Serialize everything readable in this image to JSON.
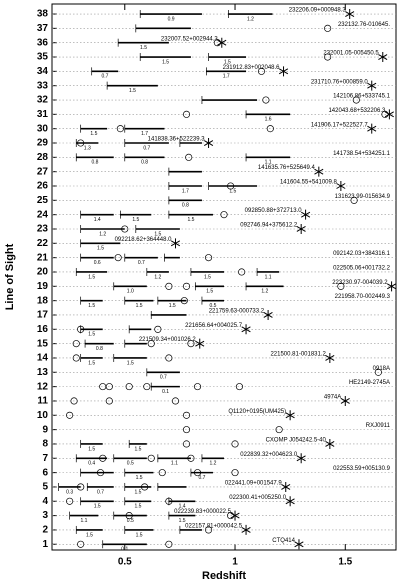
{
  "chart_data": {
    "type": "sightlines",
    "xlabel": "Redshift",
    "ylabel": "Line of Sight",
    "xlim": [
      0.17,
      1.73
    ],
    "xticks": [
      0.5,
      1,
      1.5
    ],
    "ylim": [
      0.6,
      38.7
    ],
    "yticks": [
      1,
      2,
      3,
      4,
      5,
      6,
      7,
      8,
      9,
      10,
      11,
      12,
      13,
      14,
      15,
      16,
      17,
      18,
      19,
      20,
      21,
      22,
      23,
      24,
      25,
      26,
      27,
      28,
      29,
      30,
      31,
      32,
      33,
      34,
      35,
      36,
      37,
      38
    ],
    "grid": true,
    "color": "#000000",
    "lines": [
      {
        "label": "CTQ414",
        "quasar_z": 1.29,
        "absorbers": [
          0.3,
          0.7
        ],
        "paths": [
          {
            "z": [
              0.4,
              0.6
            ],
            "label": "0.1"
          }
        ]
      },
      {
        "label": "022157.81+000042.5",
        "quasar_z": 1.05,
        "absorbers": [
          0.88
        ],
        "paths": [
          {
            "z": [
              0.28,
              0.4
            ],
            "label": "1.5"
          },
          {
            "z": [
              0.5,
              0.63
            ],
            "label": "1.5"
          },
          {
            "z": [
              0.75,
              0.85
            ]
          }
        ]
      },
      {
        "label": "022239.83+000022.5",
        "quasar_z": 1.0,
        "absorbers": [
          0.52,
          0.98
        ],
        "paths": [
          {
            "z": [
              0.25,
              0.38
            ],
            "label": "1.1"
          },
          {
            "z": [
              0.45,
              0.6
            ],
            "label": "0.5"
          },
          {
            "z": [
              0.7,
              0.82
            ],
            "label": "1.5"
          }
        ]
      },
      {
        "label": "022300.41+005250.0",
        "quasar_z": 1.25,
        "absorbers": [
          0.25,
          0.7
        ],
        "paths": [
          {
            "z": [
              0.3,
              0.45
            ],
            "label": "1.5"
          },
          {
            "z": [
              0.5,
              0.62
            ],
            "label": "1.5"
          },
          {
            "z": [
              0.7,
              0.82
            ],
            "label": "1.4"
          }
        ]
      },
      {
        "label": "022441.09+001547.9",
        "quasar_z": 1.23,
        "absorbers": [
          0.3,
          0.59
        ],
        "paths": [
          {
            "z": [
              0.2,
              0.3
            ],
            "label": "0.3"
          },
          {
            "z": [
              0.33,
              0.45
            ],
            "label": "0.7"
          },
          {
            "z": [
              0.5,
              0.62
            ],
            "label": "1.5"
          },
          {
            "z": [
              0.65,
              0.78
            ]
          }
        ]
      },
      {
        "label": "022553.59+005130.9",
        "absorbers": [
          0.39,
          0.67,
          0.83,
          1.0
        ],
        "paths": [
          {
            "z": [
              0.3,
              0.45
            ]
          },
          {
            "z": [
              0.5,
              0.63
            ],
            "label": "1.5"
          },
          {
            "z": [
              0.8,
              0.9
            ],
            "label": "0.7"
          }
        ]
      },
      {
        "label": "022839.32+004623.0",
        "quasar_z": 1.3,
        "absorbers": [
          0.4,
          0.62,
          0.8
        ],
        "paths": [
          {
            "z": [
              0.28,
              0.42
            ],
            "label": "0.4"
          },
          {
            "z": [
              0.45,
              0.6
            ],
            "label": "0.5"
          },
          {
            "z": [
              0.65,
              0.8
            ],
            "label": "1.1"
          },
          {
            "z": [
              0.85,
              0.95
            ],
            "label": "1.2"
          }
        ]
      },
      {
        "label": "CXOMP J054242.5-40",
        "quasar_z": 1.43,
        "absorbers": [
          0.78,
          1.0
        ],
        "paths": [
          {
            "z": [
              0.3,
              0.4
            ],
            "label": "1.5"
          },
          {
            "z": [
              0.52,
              0.6
            ],
            "label": "1.5"
          }
        ]
      },
      {
        "label": "RXJ0911",
        "absorbers": [
          0.78,
          1.2
        ],
        "paths": []
      },
      {
        "label": "Q1120+0195(UM425)",
        "quasar_z": 1.25,
        "absorbers": [
          0.25,
          0.78
        ],
        "paths": []
      },
      {
        "label": "4974A",
        "quasar_z": 1.5,
        "absorbers": [
          0.27,
          0.43,
          0.73
        ],
        "paths": []
      },
      {
        "label": "HE2149-2745A",
        "absorbers": [
          0.4,
          0.43,
          0.52,
          0.6,
          0.83,
          1.02
        ],
        "paths": [
          {
            "z": [
              0.62,
              0.75
            ],
            "label": "0.1"
          }
        ]
      },
      {
        "label": "0918A",
        "absorbers": [
          1.65
        ],
        "paths": [
          {
            "z": [
              0.6,
              0.75
            ],
            "label": "0.7"
          }
        ]
      },
      {
        "label": "221500.81-001831.2",
        "quasar_z": 1.43,
        "absorbers": [
          0.28,
          0.7
        ],
        "paths": [
          {
            "z": [
              0.3,
              0.4
            ],
            "label": "1.5"
          },
          {
            "z": [
              0.45,
              0.6
            ],
            "label": "1.5"
          }
        ]
      },
      {
        "label": "221509.34+001026.2",
        "quasar_z": 0.84,
        "absorbers": [
          0.28,
          0.62,
          0.8
        ],
        "paths": [
          {
            "z": [
              0.32,
              0.45
            ],
            "label": "0.8"
          },
          {
            "z": [
              0.5,
              0.6
            ]
          }
        ]
      },
      {
        "label": "221656.64+004025.7",
        "quasar_z": 1.05,
        "absorbers": [
          0.3,
          0.65
        ],
        "paths": [
          {
            "z": [
              0.3,
              0.4
            ],
            "label": "1.5"
          },
          {
            "z": [
              0.52,
              0.62
            ]
          }
        ]
      },
      {
        "label": "221759.63-000733.2",
        "quasar_z": 1.15,
        "absorbers": [],
        "paths": [
          {
            "z": [
              0.62,
              0.78
            ]
          }
        ]
      },
      {
        "label": "221958.70-002449.3",
        "absorbers": [
          0.77
        ],
        "paths": [
          {
            "z": [
              0.3,
              0.4
            ],
            "label": "1.5"
          },
          {
            "z": [
              0.5,
              0.63
            ],
            "label": "1.5"
          },
          {
            "z": [
              0.65,
              0.78
            ],
            "label": "1.5"
          },
          {
            "z": [
              0.85,
              0.95
            ],
            "label": "0.5"
          }
        ]
      },
      {
        "label": "223230.97-004039.2",
        "quasar_z": 1.71,
        "absorbers": [
          0.7,
          0.78,
          1.48
        ],
        "paths": [
          {
            "z": [
              0.45,
              0.6
            ],
            "label": "1.0"
          },
          {
            "z": [
              0.82,
              0.95
            ],
            "label": "1.5"
          },
          {
            "z": [
              1.05,
              1.22
            ],
            "label": "1.2"
          }
        ]
      },
      {
        "label": "022505.06+001732.2",
        "absorbers": [
          1.03
        ],
        "paths": [
          {
            "z": [
              0.28,
              0.42
            ],
            "label": "1.5"
          },
          {
            "z": [
              0.6,
              0.7
            ],
            "label": "1.2"
          },
          {
            "z": [
              0.8,
              0.95
            ],
            "label": "1.5"
          },
          {
            "z": [
              1.1,
              1.2
            ],
            "label": "1.1"
          }
        ]
      },
      {
        "label": "092142.03+384316.1",
        "absorbers": [
          0.47,
          0.88
        ],
        "paths": [
          {
            "z": [
              0.3,
              0.45
            ],
            "label": "0.6"
          },
          {
            "z": [
              0.5,
              0.65
            ],
            "label": "0.7"
          },
          {
            "z": [
              0.68,
              0.75
            ]
          }
        ]
      },
      {
        "label": "092218.62+364448.0",
        "quasar_z": 0.73,
        "absorbers": [],
        "paths": [
          {
            "z": [
              0.3,
              0.48
            ],
            "label": "1.5"
          }
        ]
      },
      {
        "label": "092746.94+375612.2",
        "quasar_z": 1.3,
        "absorbers": [
          0.5
        ],
        "paths": [
          {
            "z": [
              0.3,
              0.5
            ],
            "label": "1.2"
          },
          {
            "z": [
              0.55,
              0.75
            ],
            "label": "1.5"
          }
        ]
      },
      {
        "label": "092850.88+372713.0",
        "quasar_z": 1.32,
        "absorbers": [
          0.95
        ],
        "paths": [
          {
            "z": [
              0.3,
              0.45
            ],
            "label": "1.4"
          },
          {
            "z": [
              0.48,
              0.62
            ],
            "label": "1.5"
          },
          {
            "z": [
              0.7,
              0.9
            ],
            "label": "1.5"
          }
        ]
      },
      {
        "label": "131623.99-015634.9",
        "absorbers": [
          1.54
        ],
        "paths": [
          {
            "z": [
              0.7,
              0.85
            ],
            "label": "0.8"
          }
        ]
      },
      {
        "label": "141604.55+541009.8",
        "quasar_z": 1.48,
        "absorbers": [
          0.98
        ],
        "paths": [
          {
            "z": [
              0.7,
              0.85
            ],
            "label": "1.7"
          },
          {
            "z": [
              0.88,
              1.1
            ],
            "label": "1.5"
          }
        ]
      },
      {
        "label": "141635.76+525649.4",
        "quasar_z": 1.38,
        "absorbers": [],
        "paths": [
          {
            "z": [
              0.7,
              0.85
            ]
          }
        ]
      },
      {
        "label": "141738.54+534251.1",
        "absorbers": [
          0.79
        ],
        "paths": [
          {
            "z": [
              0.28,
              0.45
            ],
            "label": "0.8"
          },
          {
            "z": [
              0.5,
              0.68
            ],
            "label": "0.8"
          },
          {
            "z": [
              1.05,
              1.25
            ],
            "label": "1.1"
          }
        ]
      },
      {
        "label": "141838.36+522239.3",
        "quasar_z": 0.88,
        "absorbers": [
          0.3
        ],
        "paths": [
          {
            "z": [
              0.28,
              0.38
            ],
            "label": "1.3"
          },
          {
            "z": [
              0.5,
              0.7
            ],
            "label": "0.7"
          },
          {
            "z": [
              0.75,
              0.85
            ]
          }
        ]
      },
      {
        "label": "141906.17+522527.7",
        "quasar_z": 1.62,
        "absorbers": [
          0.48,
          1.16
        ],
        "paths": [
          {
            "z": [
              0.3,
              0.42
            ],
            "label": "1.5"
          },
          {
            "z": [
              0.5,
              0.68
            ],
            "label": "1.7"
          }
        ]
      },
      {
        "label": "142043.68+532206.3",
        "quasar_z": 1.7,
        "absorbers": [
          0.78,
          1.68
        ],
        "paths": [
          {
            "z": [
              1.05,
              1.25
            ],
            "label": "1.6"
          }
        ]
      },
      {
        "label": "142106.86+533745.1",
        "absorbers": [
          1.14,
          1.55
        ],
        "paths": [
          {
            "z": [
              0.85,
              1.1
            ]
          }
        ]
      },
      {
        "label": "231710.76+000859.0",
        "quasar_z": 1.62,
        "absorbers": [],
        "paths": [
          {
            "z": [
              0.42,
              0.65
            ],
            "label": "1.5"
          }
        ]
      },
      {
        "label": "231912.83+002048.6",
        "quasar_z": 1.22,
        "absorbers": [
          1.12
        ],
        "paths": [
          {
            "z": [
              0.35,
              0.47
            ],
            "label": "0.7"
          },
          {
            "z": [
              0.87,
              1.05
            ],
            "label": "1.7"
          }
        ]
      },
      {
        "label": "232001.05-005450.5",
        "quasar_z": 1.67,
        "absorbers": [
          1.42
        ],
        "paths": [
          {
            "z": [
              0.57,
              0.8
            ],
            "label": "1.5"
          },
          {
            "z": [
              0.88,
              1.05
            ],
            "label": "1.5"
          }
        ]
      },
      {
        "label": "232007.52+002944.3",
        "quasar_z": 0.94,
        "absorbers": [
          0.92
        ],
        "paths": [
          {
            "z": [
              0.47,
              0.7
            ],
            "label": "1.5"
          }
        ]
      },
      {
        "label": "232132.76-010645.",
        "absorbers": [
          1.42
        ],
        "paths": [
          {
            "z": [
              0.55,
              0.8
            ]
          }
        ]
      },
      {
        "label": "232206.09+000948.3",
        "quasar_z": 1.52,
        "absorbers": [],
        "paths": [
          {
            "z": [
              0.57,
              0.85
            ],
            "label": "0.9"
          },
          {
            "z": [
              0.97,
              1.17
            ],
            "label": "1.2"
          }
        ]
      }
    ]
  }
}
